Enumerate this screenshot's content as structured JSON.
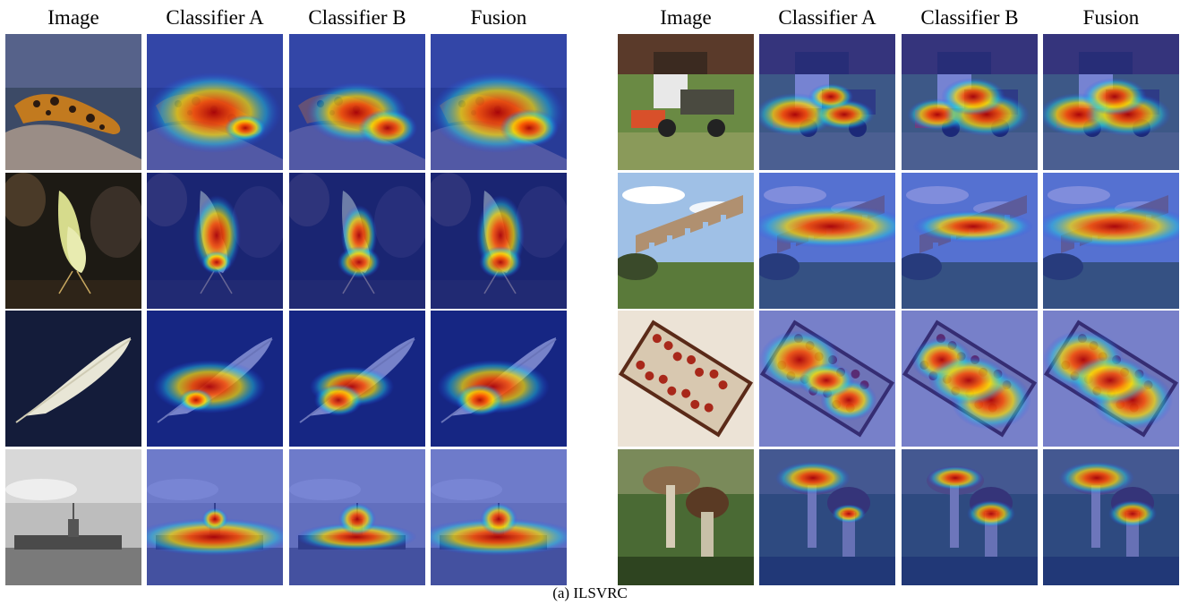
{
  "figure": {
    "caption": "(a) ILSVRC",
    "panels": [
      {
        "name": "left",
        "headers": [
          "Image",
          "Classifier A",
          "Classifier B",
          "Fusion"
        ],
        "rows": [
          {
            "subject": "gila-monster"
          },
          {
            "subject": "butterfly"
          },
          {
            "subject": "feather"
          },
          {
            "subject": "aircraft-carrier"
          }
        ]
      },
      {
        "name": "right",
        "headers": [
          "Image",
          "Classifier A",
          "Classifier B",
          "Fusion"
        ],
        "rows": [
          {
            "subject": "utility-truck"
          },
          {
            "subject": "viaduct"
          },
          {
            "subject": "abacus"
          },
          {
            "subject": "mushroom"
          }
        ]
      }
    ]
  }
}
